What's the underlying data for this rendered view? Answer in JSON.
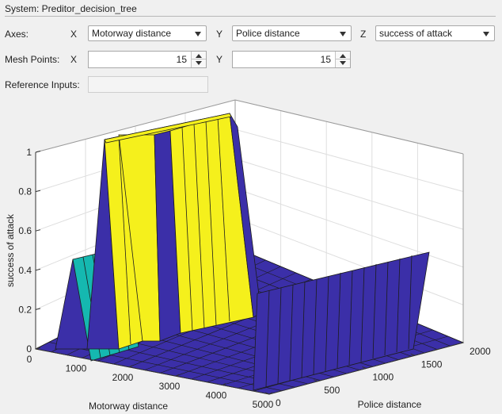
{
  "system": {
    "label": "System: Preditor_decision_tree"
  },
  "axes": {
    "label": "Axes:",
    "x_tag": "X",
    "x_value": "Motorway distance",
    "y_tag": "Y",
    "y_value": "Police distance",
    "z_tag": "Z",
    "z_value": "success of attack"
  },
  "mesh": {
    "label": "Mesh Points:",
    "x_tag": "X",
    "x_value": "15",
    "y_tag": "Y",
    "y_value": "15"
  },
  "reference": {
    "label": "Reference Inputs:",
    "value": ""
  },
  "colors": {
    "surface_low": "#3b2fa8",
    "surface_mid": "#15b8b0",
    "surface_high": "#f5f01c"
  },
  "chart_data": {
    "type": "surface",
    "xlabel": "Motorway distance",
    "ylabel": "Police distance",
    "zlabel": "success of attack",
    "x_ticks": [
      "0",
      "1000",
      "2000",
      "3000",
      "4000",
      "5000"
    ],
    "y_ticks": [
      "0",
      "500",
      "1000",
      "1500",
      "2000"
    ],
    "z_ticks": [
      "0",
      "0.2",
      "0.4",
      "0.6",
      "0.8",
      "1"
    ],
    "xlim": [
      0,
      5000
    ],
    "ylim": [
      0,
      2000
    ],
    "zlim": [
      0,
      1
    ],
    "mesh_points": [
      15,
      15
    ],
    "grid": true
  }
}
